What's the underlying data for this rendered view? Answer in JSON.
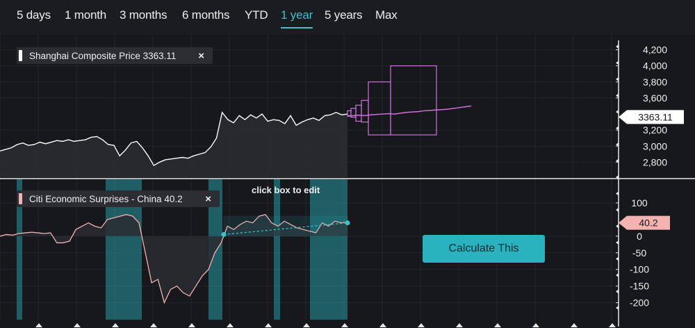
{
  "tabs": [
    {
      "label": "5 days"
    },
    {
      "label": "1 month"
    },
    {
      "label": "3 months"
    },
    {
      "label": "6 months"
    },
    {
      "label": "YTD"
    },
    {
      "label": "1 year",
      "active": true
    },
    {
      "label": "5 years"
    },
    {
      "label": "Max"
    }
  ],
  "top_legend": {
    "label": "Shanghai Composite Price 3363.11",
    "color": "#ffffff"
  },
  "bottom_legend": {
    "label": "Citi Economic Surprises - China 40.2",
    "color": "#f4b3b0"
  },
  "hint_text": "click box to edit",
  "calculate_button": "Calculate This",
  "close_icon": "×",
  "colors": {
    "price_line": "#ffffff",
    "forecast_line": "#d36fe0",
    "surprise_line": "#f4b3b0",
    "highlight": "#2ab3bf",
    "background": "#17181c"
  },
  "chart_data": [
    {
      "type": "line",
      "series": [
        {
          "name": "Shanghai Composite Price",
          "values": [
            2940,
            2960,
            2980,
            3020,
            3040,
            3010,
            3020,
            3050,
            3030,
            3050,
            3070,
            3060,
            3080,
            3060,
            3070,
            3080,
            3110,
            3120,
            3080,
            3020,
            3010,
            2880,
            2950,
            3040,
            3060,
            2980,
            2880,
            2760,
            2800,
            2830,
            2840,
            2850,
            2860,
            2850,
            2880,
            2900,
            2920,
            2990,
            3100,
            3420,
            3330,
            3290,
            3380,
            3330,
            3390,
            3350,
            3400,
            3310,
            3330,
            3320,
            3280,
            3380,
            3260,
            3300,
            3330,
            3350,
            3320,
            3380,
            3390,
            3420,
            3390,
            3400
          ]
        },
        {
          "name": "Forecast",
          "values": [
            3370,
            3380,
            3385,
            3380,
            3390,
            3395,
            3400,
            3405,
            3400,
            3410,
            3420,
            3425,
            3430,
            3440,
            3445,
            3450,
            3455,
            3460,
            3470,
            3480,
            3490,
            3500
          ]
        }
      ],
      "last_value": "3363.11",
      "yaxis_ticks": [
        "4,200",
        "4,000",
        "3,800",
        "3,600",
        "3,200",
        "3,000",
        "2,800"
      ],
      "ylim": [
        2700,
        4300
      ],
      "forecast_boxes": [
        {
          "low": 3380,
          "high": 3440
        },
        {
          "low": 3360,
          "high": 3470
        },
        {
          "low": 3310,
          "high": 3510
        },
        {
          "low": 3300,
          "high": 3570
        },
        {
          "low": 3140,
          "high": 3800
        },
        {
          "low": 3140,
          "high": 4000
        }
      ]
    },
    {
      "type": "area",
      "series": [
        {
          "name": "Citi Economic Surprises - China",
          "values": [
            0,
            5,
            3,
            8,
            10,
            12,
            10,
            8,
            10,
            -20,
            -20,
            -15,
            20,
            30,
            40,
            30,
            25,
            50,
            55,
            60,
            65,
            60,
            40,
            -50,
            -140,
            -130,
            -200,
            -160,
            -150,
            -170,
            -180,
            -150,
            -120,
            -100,
            -50,
            -20,
            30,
            20,
            35,
            45,
            40,
            60,
            65,
            40,
            30,
            45,
            35,
            25,
            20,
            15,
            10,
            40,
            30,
            45,
            40,
            42
          ]
        }
      ],
      "last_value": "40.2",
      "yaxis_ticks": [
        "100",
        "0",
        "-50",
        "-100",
        "-150",
        "-200"
      ],
      "ylim": [
        -230,
        150
      ]
    }
  ]
}
